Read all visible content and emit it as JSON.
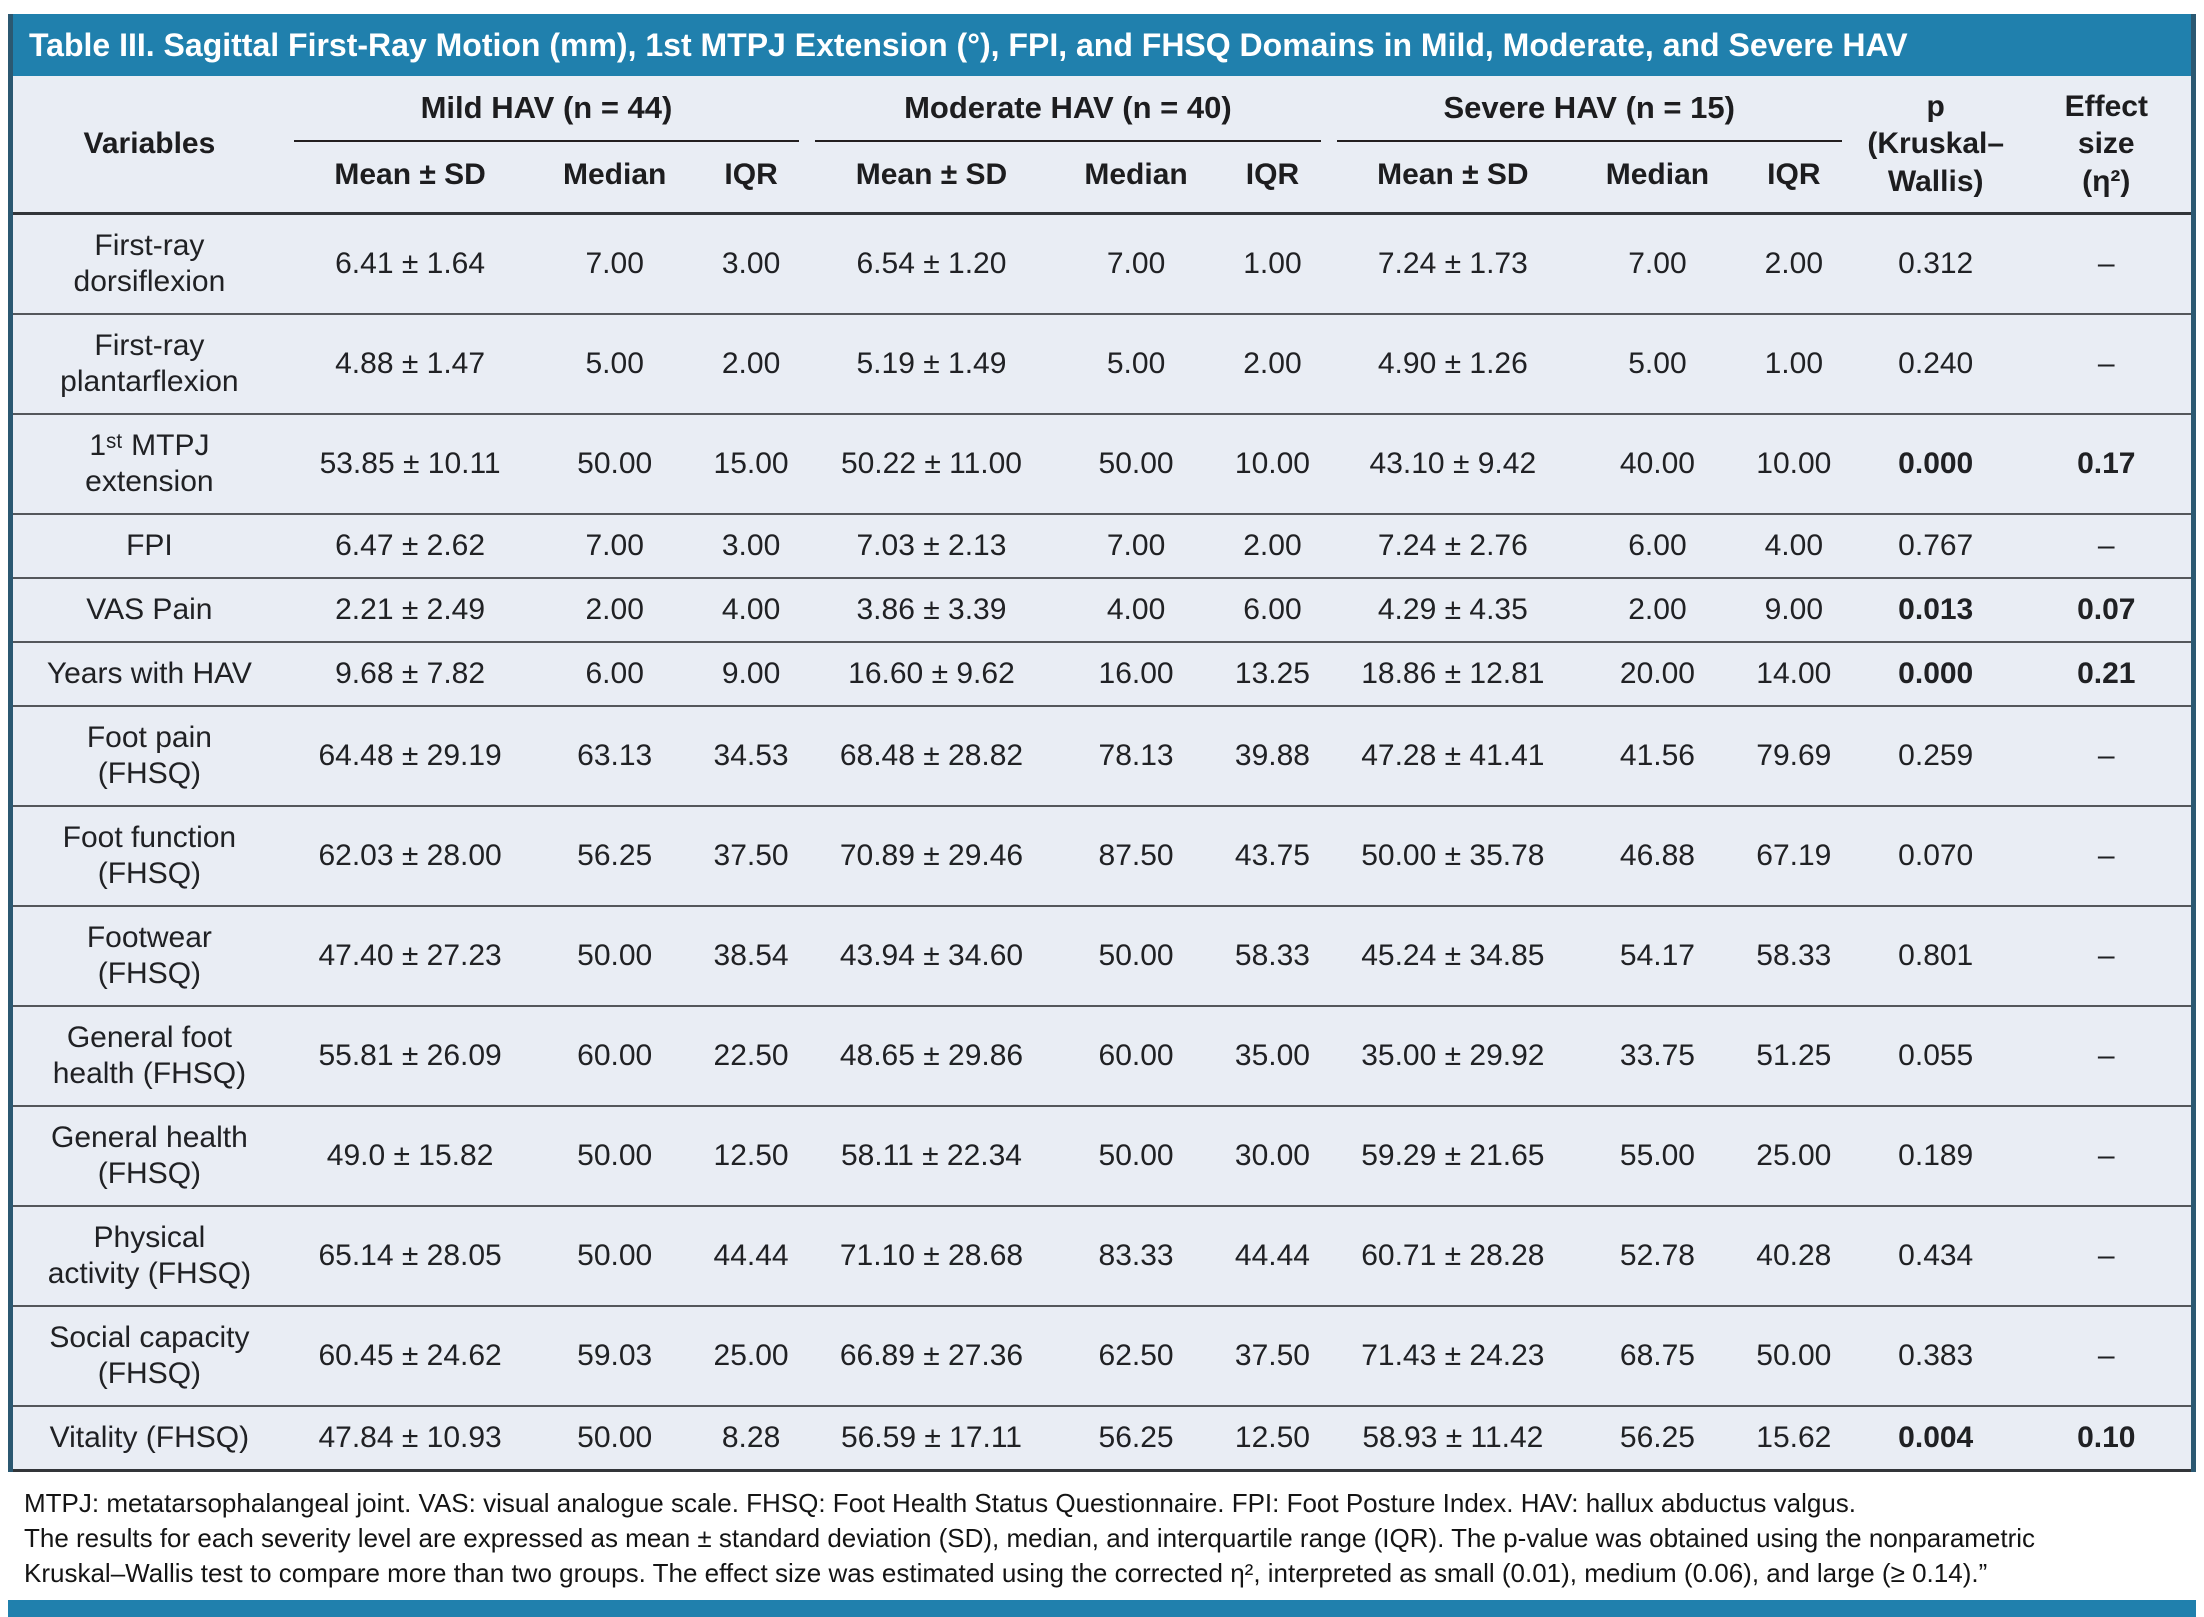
{
  "title": "Table III. Sagittal First-Ray Motion (mm), 1st MTPJ Extension (°), FPI, and FHSQ Domains in Mild, Moderate, and Severe HAV",
  "header": {
    "variables_label": "Variables",
    "groups": [
      {
        "label": "Mild HAV (n = 44)"
      },
      {
        "label": "Moderate HAV (n = 40)"
      },
      {
        "label": "Severe HAV (n = 15)"
      }
    ],
    "subheaders": [
      "Mean ± SD",
      "Median",
      "IQR"
    ],
    "p_label": "p\n(Kruskal–\nWallis)",
    "effect_label": "Effect\nsize\n(η²)"
  },
  "rows": [
    {
      "variable": "First-ray\ndorsiflexion",
      "cells": [
        "6.41 ± 1.64",
        "7.00",
        "3.00",
        "6.54 ± 1.20",
        "7.00",
        "1.00",
        "7.24 ± 1.73",
        "7.00",
        "2.00"
      ],
      "p": "0.312",
      "effect": "–",
      "significant": false
    },
    {
      "variable": "First-ray\nplantarflexion",
      "cells": [
        "4.88 ± 1.47",
        "5.00",
        "2.00",
        "5.19 ± 1.49",
        "5.00",
        "2.00",
        "4.90 ± 1.26",
        "5.00",
        "1.00"
      ],
      "p": "0.240",
      "effect": "–",
      "significant": false
    },
    {
      "variable": "1ˢᵗ MTPJ\nextension",
      "cells": [
        "53.85 ± 10.11",
        "50.00",
        "15.00",
        "50.22 ± 11.00",
        "50.00",
        "10.00",
        "43.10 ± 9.42",
        "40.00",
        "10.00"
      ],
      "p": "0.000",
      "effect": "0.17",
      "significant": true
    },
    {
      "variable": "FPI",
      "cells": [
        "6.47 ± 2.62",
        "7.00",
        "3.00",
        "7.03 ± 2.13",
        "7.00",
        "2.00",
        "7.24 ± 2.76",
        "6.00",
        "4.00"
      ],
      "p": "0.767",
      "effect": "–",
      "significant": false
    },
    {
      "variable": "VAS Pain",
      "cells": [
        "2.21 ± 2.49",
        "2.00",
        "4.00",
        "3.86 ± 3.39",
        "4.00",
        "6.00",
        "4.29 ± 4.35",
        "2.00",
        "9.00"
      ],
      "p": "0.013",
      "effect": "0.07",
      "significant": true
    },
    {
      "variable": "Years with HAV",
      "cells": [
        "9.68 ± 7.82",
        "6.00",
        "9.00",
        "16.60 ± 9.62",
        "16.00",
        "13.25",
        "18.86 ± 12.81",
        "20.00",
        "14.00"
      ],
      "p": "0.000",
      "effect": "0.21",
      "significant": true
    },
    {
      "variable": "Foot pain\n(FHSQ)",
      "cells": [
        "64.48 ± 29.19",
        "63.13",
        "34.53",
        "68.48 ± 28.82",
        "78.13",
        "39.88",
        "47.28 ± 41.41",
        "41.56",
        "79.69"
      ],
      "p": "0.259",
      "effect": "–",
      "significant": false
    },
    {
      "variable": "Foot function\n(FHSQ)",
      "cells": [
        "62.03 ± 28.00",
        "56.25",
        "37.50",
        "70.89 ± 29.46",
        "87.50",
        "43.75",
        "50.00 ± 35.78",
        "46.88",
        "67.19"
      ],
      "p": "0.070",
      "effect": "–",
      "significant": false
    },
    {
      "variable": "Footwear\n(FHSQ)",
      "cells": [
        "47.40 ± 27.23",
        "50.00",
        "38.54",
        "43.94 ± 34.60",
        "50.00",
        "58.33",
        "45.24 ± 34.85",
        "54.17",
        "58.33"
      ],
      "p": "0.801",
      "effect": "–",
      "significant": false
    },
    {
      "variable": "General foot\nhealth (FHSQ)",
      "cells": [
        "55.81 ± 26.09",
        "60.00",
        "22.50",
        "48.65 ± 29.86",
        "60.00",
        "35.00",
        "35.00 ± 29.92",
        "33.75",
        "51.25"
      ],
      "p": "0.055",
      "effect": "–",
      "significant": false
    },
    {
      "variable": "General health\n(FHSQ)",
      "cells": [
        "49.0 ± 15.82",
        "50.00",
        "12.50",
        "58.11 ± 22.34",
        "50.00",
        "30.00",
        "59.29 ± 21.65",
        "55.00",
        "25.00"
      ],
      "p": "0.189",
      "effect": "–",
      "significant": false
    },
    {
      "variable": "Physical\nactivity (FHSQ)",
      "cells": [
        "65.14 ± 28.05",
        "50.00",
        "44.44",
        "71.10 ± 28.68",
        "83.33",
        "44.44",
        "60.71 ± 28.28",
        "52.78",
        "40.28"
      ],
      "p": "0.434",
      "effect": "–",
      "significant": false
    },
    {
      "variable": "Social capacity\n(FHSQ)",
      "cells": [
        "60.45 ± 24.62",
        "59.03",
        "25.00",
        "66.89 ± 27.36",
        "62.50",
        "37.50",
        "71.43 ± 24.23",
        "68.75",
        "50.00"
      ],
      "p": "0.383",
      "effect": "–",
      "significant": false
    },
    {
      "variable": "Vitality (FHSQ)",
      "cells": [
        "47.84 ± 10.93",
        "50.00",
        "8.28",
        "56.59 ± 17.11",
        "56.25",
        "12.50",
        "58.93 ± 11.42",
        "56.25",
        "15.62"
      ],
      "p": "0.004",
      "effect": "0.10",
      "significant": true
    }
  ],
  "footnotes": [
    "MTPJ: metatarsophalangeal joint. VAS: visual analogue scale. FHSQ: Foot Health Status Questionnaire. FPI: Foot Posture Index. HAV: hallux abductus valgus.",
    "The results for each severity level are expressed as mean ± standard deviation (SD), median, and interquartile range (IQR). The p-value was obtained using the nonparametric",
    "Kruskal–Wallis test to compare more than two groups. The effect size was estimated using the corrected η², interpreted as small (0.01), medium (0.06), and large (≥ 0.14).”"
  ],
  "colors": {
    "accent_blue": "#2080ad",
    "table_background": "#e9edf4",
    "rail": "#2b5871"
  }
}
